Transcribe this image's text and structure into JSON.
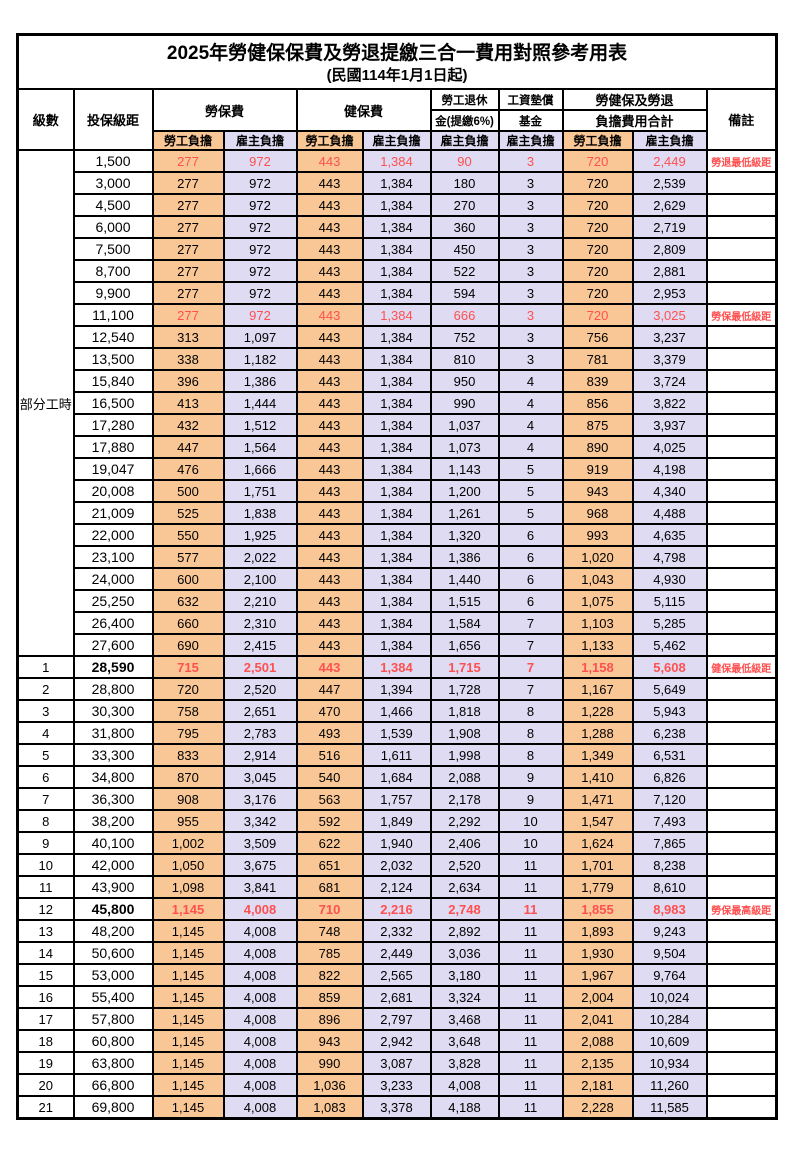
{
  "title": "2025年勞健保保費及勞退提繳三合一費用對照參考用表",
  "subtitle": "(民國114年1月1日起)",
  "columns": {
    "level": "級數",
    "bracket": "投保級距",
    "labor_insurance": "勞保費",
    "health_insurance": "健保費",
    "pension_line1": "勞工退休",
    "pension_line2": "金(提繳6%)",
    "fund_line1": "工資墊償",
    "fund_line2": "基金",
    "total_line1": "勞健保及勞退",
    "total_line2": "負擔費用合計",
    "remark": "備註",
    "employee": "勞工負擔",
    "employer": "雇主負擔"
  },
  "part_time_label": "部分工時",
  "part_time_rowspan": 23,
  "colors": {
    "employee_bg": "#F9C795",
    "employer_bg": "#DEDBF2",
    "highlight": "#FF5050",
    "border": "#000000"
  },
  "remarks": {
    "pension_min": "勞退最低級距",
    "labor_min": "勞保最低級距",
    "health_min": "健保最低級距",
    "labor_max": "勞保最高級距"
  },
  "rows": [
    {
      "c": [
        "",
        "1,500",
        "277",
        "972",
        "443",
        "1,384",
        "90",
        "3",
        "720",
        "2,449"
      ],
      "remark": "勞退最低級距",
      "red": true,
      "bold": false
    },
    {
      "c": [
        "",
        "3,000",
        "277",
        "972",
        "443",
        "1,384",
        "180",
        "3",
        "720",
        "2,539"
      ],
      "remark": "",
      "red": false,
      "bold": false
    },
    {
      "c": [
        "",
        "4,500",
        "277",
        "972",
        "443",
        "1,384",
        "270",
        "3",
        "720",
        "2,629"
      ],
      "remark": "",
      "red": false,
      "bold": false
    },
    {
      "c": [
        "",
        "6,000",
        "277",
        "972",
        "443",
        "1,384",
        "360",
        "3",
        "720",
        "2,719"
      ],
      "remark": "",
      "red": false,
      "bold": false
    },
    {
      "c": [
        "",
        "7,500",
        "277",
        "972",
        "443",
        "1,384",
        "450",
        "3",
        "720",
        "2,809"
      ],
      "remark": "",
      "red": false,
      "bold": false
    },
    {
      "c": [
        "",
        "8,700",
        "277",
        "972",
        "443",
        "1,384",
        "522",
        "3",
        "720",
        "2,881"
      ],
      "remark": "",
      "red": false,
      "bold": false
    },
    {
      "c": [
        "",
        "9,900",
        "277",
        "972",
        "443",
        "1,384",
        "594",
        "3",
        "720",
        "2,953"
      ],
      "remark": "",
      "red": false,
      "bold": false
    },
    {
      "c": [
        "",
        "11,100",
        "277",
        "972",
        "443",
        "1,384",
        "666",
        "3",
        "720",
        "3,025"
      ],
      "remark": "勞保最低級距",
      "red": true,
      "bold": false
    },
    {
      "c": [
        "",
        "12,540",
        "313",
        "1,097",
        "443",
        "1,384",
        "752",
        "3",
        "756",
        "3,237"
      ],
      "remark": "",
      "red": false,
      "bold": false
    },
    {
      "c": [
        "",
        "13,500",
        "338",
        "1,182",
        "443",
        "1,384",
        "810",
        "3",
        "781",
        "3,379"
      ],
      "remark": "",
      "red": false,
      "bold": false
    },
    {
      "c": [
        "",
        "15,840",
        "396",
        "1,386",
        "443",
        "1,384",
        "950",
        "4",
        "839",
        "3,724"
      ],
      "remark": "",
      "red": false,
      "bold": false
    },
    {
      "c": [
        "",
        "16,500",
        "413",
        "1,444",
        "443",
        "1,384",
        "990",
        "4",
        "856",
        "3,822"
      ],
      "remark": "",
      "red": false,
      "bold": false
    },
    {
      "c": [
        "",
        "17,280",
        "432",
        "1,512",
        "443",
        "1,384",
        "1,037",
        "4",
        "875",
        "3,937"
      ],
      "remark": "",
      "red": false,
      "bold": false
    },
    {
      "c": [
        "",
        "17,880",
        "447",
        "1,564",
        "443",
        "1,384",
        "1,073",
        "4",
        "890",
        "4,025"
      ],
      "remark": "",
      "red": false,
      "bold": false
    },
    {
      "c": [
        "",
        "19,047",
        "476",
        "1,666",
        "443",
        "1,384",
        "1,143",
        "5",
        "919",
        "4,198"
      ],
      "remark": "",
      "red": false,
      "bold": false
    },
    {
      "c": [
        "",
        "20,008",
        "500",
        "1,751",
        "443",
        "1,384",
        "1,200",
        "5",
        "943",
        "4,340"
      ],
      "remark": "",
      "red": false,
      "bold": false
    },
    {
      "c": [
        "",
        "21,009",
        "525",
        "1,838",
        "443",
        "1,384",
        "1,261",
        "5",
        "968",
        "4,488"
      ],
      "remark": "",
      "red": false,
      "bold": false
    },
    {
      "c": [
        "",
        "22,000",
        "550",
        "1,925",
        "443",
        "1,384",
        "1,320",
        "6",
        "993",
        "4,635"
      ],
      "remark": "",
      "red": false,
      "bold": false
    },
    {
      "c": [
        "",
        "23,100",
        "577",
        "2,022",
        "443",
        "1,384",
        "1,386",
        "6",
        "1,020",
        "4,798"
      ],
      "remark": "",
      "red": false,
      "bold": false
    },
    {
      "c": [
        "",
        "24,000",
        "600",
        "2,100",
        "443",
        "1,384",
        "1,440",
        "6",
        "1,043",
        "4,930"
      ],
      "remark": "",
      "red": false,
      "bold": false
    },
    {
      "c": [
        "",
        "25,250",
        "632",
        "2,210",
        "443",
        "1,384",
        "1,515",
        "6",
        "1,075",
        "5,115"
      ],
      "remark": "",
      "red": false,
      "bold": false
    },
    {
      "c": [
        "",
        "26,400",
        "660",
        "2,310",
        "443",
        "1,384",
        "1,584",
        "7",
        "1,103",
        "5,285"
      ],
      "remark": "",
      "red": false,
      "bold": false
    },
    {
      "c": [
        "",
        "27,600",
        "690",
        "2,415",
        "443",
        "1,384",
        "1,656",
        "7",
        "1,133",
        "5,462"
      ],
      "remark": "",
      "red": false,
      "bold": false
    },
    {
      "c": [
        "1",
        "28,590",
        "715",
        "2,501",
        "443",
        "1,384",
        "1,715",
        "7",
        "1,158",
        "5,608"
      ],
      "remark": "健保最低級距",
      "red": true,
      "bold": true
    },
    {
      "c": [
        "2",
        "28,800",
        "720",
        "2,520",
        "447",
        "1,394",
        "1,728",
        "7",
        "1,167",
        "5,649"
      ],
      "remark": "",
      "red": false,
      "bold": false
    },
    {
      "c": [
        "3",
        "30,300",
        "758",
        "2,651",
        "470",
        "1,466",
        "1,818",
        "8",
        "1,228",
        "5,943"
      ],
      "remark": "",
      "red": false,
      "bold": false
    },
    {
      "c": [
        "4",
        "31,800",
        "795",
        "2,783",
        "493",
        "1,539",
        "1,908",
        "8",
        "1,288",
        "6,238"
      ],
      "remark": "",
      "red": false,
      "bold": false
    },
    {
      "c": [
        "5",
        "33,300",
        "833",
        "2,914",
        "516",
        "1,611",
        "1,998",
        "8",
        "1,349",
        "6,531"
      ],
      "remark": "",
      "red": false,
      "bold": false
    },
    {
      "c": [
        "6",
        "34,800",
        "870",
        "3,045",
        "540",
        "1,684",
        "2,088",
        "9",
        "1,410",
        "6,826"
      ],
      "remark": "",
      "red": false,
      "bold": false
    },
    {
      "c": [
        "7",
        "36,300",
        "908",
        "3,176",
        "563",
        "1,757",
        "2,178",
        "9",
        "1,471",
        "7,120"
      ],
      "remark": "",
      "red": false,
      "bold": false
    },
    {
      "c": [
        "8",
        "38,200",
        "955",
        "3,342",
        "592",
        "1,849",
        "2,292",
        "10",
        "1,547",
        "7,493"
      ],
      "remark": "",
      "red": false,
      "bold": false
    },
    {
      "c": [
        "9",
        "40,100",
        "1,002",
        "3,509",
        "622",
        "1,940",
        "2,406",
        "10",
        "1,624",
        "7,865"
      ],
      "remark": "",
      "red": false,
      "bold": false
    },
    {
      "c": [
        "10",
        "42,000",
        "1,050",
        "3,675",
        "651",
        "2,032",
        "2,520",
        "11",
        "1,701",
        "8,238"
      ],
      "remark": "",
      "red": false,
      "bold": false
    },
    {
      "c": [
        "11",
        "43,900",
        "1,098",
        "3,841",
        "681",
        "2,124",
        "2,634",
        "11",
        "1,779",
        "8,610"
      ],
      "remark": "",
      "red": false,
      "bold": false
    },
    {
      "c": [
        "12",
        "45,800",
        "1,145",
        "4,008",
        "710",
        "2,216",
        "2,748",
        "11",
        "1,855",
        "8,983"
      ],
      "remark": "勞保最高級距",
      "red": true,
      "bold": true
    },
    {
      "c": [
        "13",
        "48,200",
        "1,145",
        "4,008",
        "748",
        "2,332",
        "2,892",
        "11",
        "1,893",
        "9,243"
      ],
      "remark": "",
      "red": false,
      "bold": false
    },
    {
      "c": [
        "14",
        "50,600",
        "1,145",
        "4,008",
        "785",
        "2,449",
        "3,036",
        "11",
        "1,930",
        "9,504"
      ],
      "remark": "",
      "red": false,
      "bold": false
    },
    {
      "c": [
        "15",
        "53,000",
        "1,145",
        "4,008",
        "822",
        "2,565",
        "3,180",
        "11",
        "1,967",
        "9,764"
      ],
      "remark": "",
      "red": false,
      "bold": false
    },
    {
      "c": [
        "16",
        "55,400",
        "1,145",
        "4,008",
        "859",
        "2,681",
        "3,324",
        "11",
        "2,004",
        "10,024"
      ],
      "remark": "",
      "red": false,
      "bold": false
    },
    {
      "c": [
        "17",
        "57,800",
        "1,145",
        "4,008",
        "896",
        "2,797",
        "3,468",
        "11",
        "2,041",
        "10,284"
      ],
      "remark": "",
      "red": false,
      "bold": false
    },
    {
      "c": [
        "18",
        "60,800",
        "1,145",
        "4,008",
        "943",
        "2,942",
        "3,648",
        "11",
        "2,088",
        "10,609"
      ],
      "remark": "",
      "red": false,
      "bold": false
    },
    {
      "c": [
        "19",
        "63,800",
        "1,145",
        "4,008",
        "990",
        "3,087",
        "3,828",
        "11",
        "2,135",
        "10,934"
      ],
      "remark": "",
      "red": false,
      "bold": false
    },
    {
      "c": [
        "20",
        "66,800",
        "1,145",
        "4,008",
        "1,036",
        "3,233",
        "4,008",
        "11",
        "2,181",
        "11,260"
      ],
      "remark": "",
      "red": false,
      "bold": false
    },
    {
      "c": [
        "21",
        "69,800",
        "1,145",
        "4,008",
        "1,083",
        "3,378",
        "4,188",
        "11",
        "2,228",
        "11,585"
      ],
      "remark": "",
      "red": false,
      "bold": false
    }
  ]
}
